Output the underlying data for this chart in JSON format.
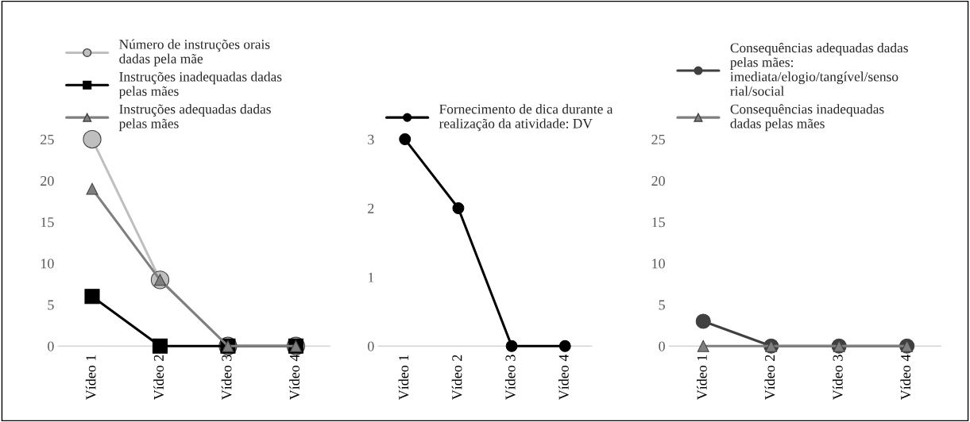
{
  "chart_data": [
    {
      "type": "line",
      "categories": [
        "Vídeo 1",
        "Vídeo 2",
        "Vídeo 3",
        "Vídeo 4"
      ],
      "ylim": [
        0,
        25
      ],
      "yticks": [
        0,
        5,
        10,
        15,
        20,
        25
      ],
      "grid": false,
      "legend": "top",
      "series": [
        {
          "name": "Número de instruções orais dadas pela mãe",
          "color": "#bfbfbf",
          "marker": "circle",
          "values": [
            25,
            8,
            0,
            0
          ]
        },
        {
          "name": "Instruções inadequadas dadas pelas mães",
          "color": "#000000",
          "marker": "square",
          "values": [
            6,
            0,
            0,
            0
          ]
        },
        {
          "name": "Instruções adequadas dadas pelas mães",
          "color": "#7f7f7f",
          "marker": "triangle",
          "values": [
            19,
            8,
            0,
            0
          ]
        }
      ]
    },
    {
      "type": "line",
      "categories": [
        "Vídeo 1",
        "Vídeo 2",
        "Vídeo 3",
        "Vídeo 4"
      ],
      "ylim": [
        0,
        3
      ],
      "yticks": [
        0,
        1,
        2,
        3
      ],
      "grid": false,
      "legend": "top",
      "series": [
        {
          "name": "Fornecimento de dica durante a realização da atividade: DV",
          "color": "#000000",
          "marker": "circle",
          "values": [
            3,
            2,
            0,
            0
          ]
        }
      ]
    },
    {
      "type": "line",
      "categories": [
        "Vídeo 1",
        "Vídeo 2",
        "Vídeo 3",
        "Vídeo 4"
      ],
      "ylim": [
        0,
        25
      ],
      "yticks": [
        0,
        5,
        10,
        15,
        20,
        25
      ],
      "grid": false,
      "legend": "top",
      "series": [
        {
          "name": "Consequências adequadas dadas pelas mães: imediata/elogio/tangível/sensorial/social",
          "color": "#404040",
          "marker": "circle",
          "values": [
            3,
            0,
            0,
            0
          ]
        },
        {
          "name": "Consequências inadequadas dadas pelas mães",
          "color": "#7f7f7f",
          "marker": "triangle",
          "values": [
            0,
            0,
            0,
            0
          ]
        }
      ]
    }
  ]
}
